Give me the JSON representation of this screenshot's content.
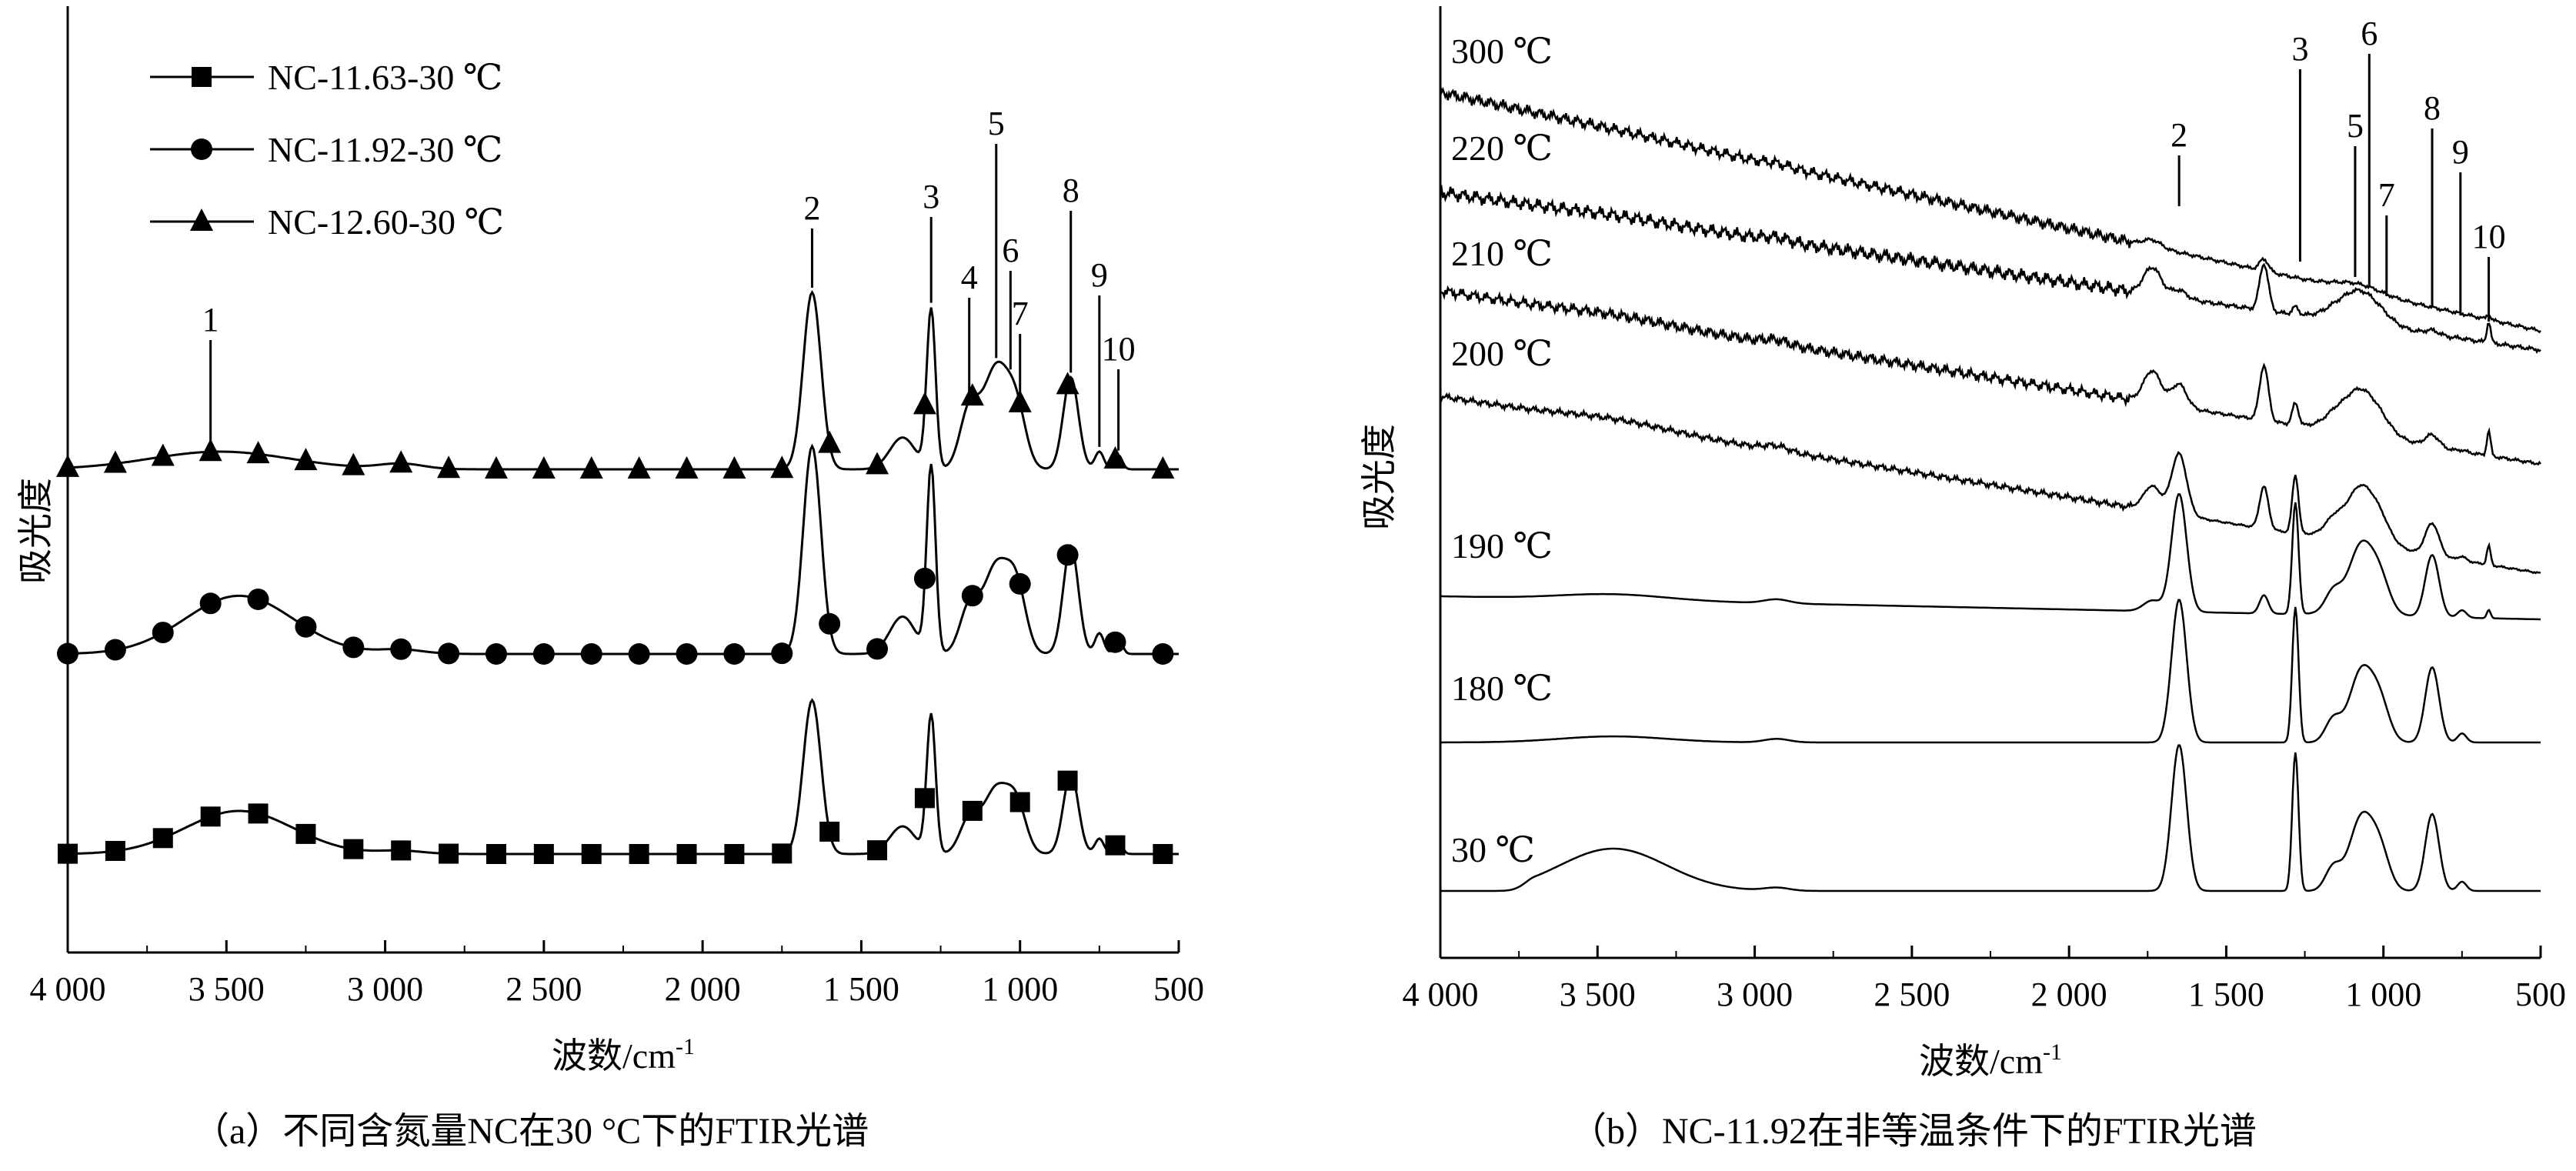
{
  "chart_data": [
    {
      "type": "line",
      "panel": "a",
      "caption": "（a）不同含氮量NC在30 °C下的FTIR光谱",
      "xlabel": "波数/cm",
      "xlabel_sup": "-1",
      "ylabel": "吸光度",
      "xlim": [
        4000,
        500
      ],
      "x_reversed": true,
      "xticks": [
        4000,
        3500,
        3000,
        2500,
        2000,
        1500,
        1000,
        500
      ],
      "xtick_labels": [
        "4 000",
        "3 500",
        "3 000",
        "2 500",
        "2 000",
        "1 500",
        "1 000",
        "500"
      ],
      "legend_position": "top-left",
      "series": [
        {
          "name": "NC-11.63-30 ℃",
          "marker": "square",
          "baseline": 0.0,
          "scale": 0.85
        },
        {
          "name": "NC-11.92-30 ℃",
          "marker": "circle",
          "baseline": 1.0,
          "scale": 1.0
        },
        {
          "name": "NC-12.60-30 ℃",
          "marker": "triangle",
          "baseline": 2.0,
          "scale": 0.85
        }
      ],
      "peaks": [
        {
          "label": "1",
          "x": 3550
        },
        {
          "label": "2",
          "x": 1655
        },
        {
          "label": "3",
          "x": 1280
        },
        {
          "label": "4",
          "x": 1160
        },
        {
          "label": "5",
          "x": 1075
        },
        {
          "label": "6",
          "x": 1030
        },
        {
          "label": "7",
          "x": 1000
        },
        {
          "label": "8",
          "x": 840
        },
        {
          "label": "9",
          "x": 750
        },
        {
          "label": "10",
          "x": 690
        }
      ]
    },
    {
      "type": "line",
      "panel": "b",
      "caption": "（b）NC-11.92在非等温条件下的FTIR光谱",
      "xlabel": "波数/cm",
      "xlabel_sup": "-1",
      "ylabel": "吸光度",
      "xlim": [
        4000,
        500
      ],
      "x_reversed": true,
      "xticks": [
        4000,
        3500,
        3000,
        2500,
        2000,
        1500,
        1000,
        500
      ],
      "xtick_labels": [
        "4 000",
        "3 500",
        "3 000",
        "2 500",
        "2 000",
        "1 500",
        "1 000",
        "500"
      ],
      "series": [
        {
          "name": "30 ℃"
        },
        {
          "name": "180 ℃"
        },
        {
          "name": "190 ℃"
        },
        {
          "name": "200 ℃"
        },
        {
          "name": "210 ℃"
        },
        {
          "name": "220 ℃"
        },
        {
          "name": "300 ℃"
        }
      ],
      "peaks": [
        {
          "label": "2",
          "x": 1650
        },
        {
          "label": "3",
          "x": 1265
        },
        {
          "label": "5",
          "x": 1090
        },
        {
          "label": "6",
          "x": 1045
        },
        {
          "label": "7",
          "x": 990
        },
        {
          "label": "8",
          "x": 845
        },
        {
          "label": "9",
          "x": 755
        },
        {
          "label": "10",
          "x": 665
        }
      ]
    }
  ]
}
